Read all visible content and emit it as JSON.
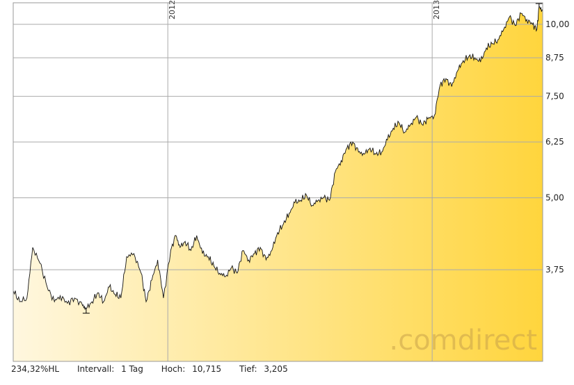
{
  "chart_data": {
    "type": "area",
    "title": "",
    "xlabel": "",
    "ylabel": "",
    "scale": "log",
    "ylim": [
      2.6,
      10.9
    ],
    "yticks": [
      {
        "value": 3.75,
        "label": "3,75"
      },
      {
        "value": 5.0,
        "label": "5,00"
      },
      {
        "value": 6.25,
        "label": "6,25"
      },
      {
        "value": 7.5,
        "label": "7,50"
      },
      {
        "value": 8.75,
        "label": "8,75"
      },
      {
        "value": 10.0,
        "label": "10,00"
      }
    ],
    "xlim": [
      "2011-06-01",
      "2013-06-03"
    ],
    "xticks": [
      {
        "x": "2012-01-01",
        "label": "2012"
      },
      {
        "x": "2013-01-01",
        "label": "2013"
      }
    ],
    "grid": true,
    "fill": "gradient light-to-dark yellow",
    "colors": {
      "fill_light": "#fff7df",
      "fill_dark": "#ffd53d",
      "line": "#111111",
      "grid": "#aaaaaa"
    },
    "watermark": ".comdirect",
    "markers": [
      {
        "label": "low",
        "x": "2011-09-10",
        "y": 3.205
      },
      {
        "label": "high",
        "x": "2013-05-29",
        "y": 10.715
      }
    ],
    "series": [
      {
        "x": [
          "2011-06-01",
          "2011-06-10",
          "2011-06-20",
          "2011-06-28",
          "2011-07-08",
          "2011-07-18",
          "2011-07-28",
          "2011-08-05",
          "2011-08-15",
          "2011-08-25",
          "2011-09-05",
          "2011-09-10",
          "2011-09-18",
          "2011-09-26",
          "2011-10-04",
          "2011-10-12",
          "2011-10-20",
          "2011-10-28",
          "2011-11-05",
          "2011-11-15",
          "2011-11-25",
          "2011-12-02",
          "2011-12-10",
          "2011-12-18",
          "2011-12-26",
          "2012-01-05",
          "2012-01-12",
          "2012-01-18",
          "2012-01-25",
          "2012-02-02",
          "2012-02-10",
          "2012-02-18",
          "2012-02-26",
          "2012-03-05",
          "2012-03-13",
          "2012-03-21",
          "2012-03-29",
          "2012-04-06",
          "2012-04-14",
          "2012-04-22",
          "2012-04-30",
          "2012-05-08",
          "2012-05-16",
          "2012-05-24",
          "2012-06-01",
          "2012-06-09",
          "2012-06-17",
          "2012-06-25",
          "2012-07-03",
          "2012-07-11",
          "2012-07-19",
          "2012-07-27",
          "2012-08-04",
          "2012-08-12",
          "2012-08-20",
          "2012-08-28",
          "2012-09-05",
          "2012-09-13",
          "2012-09-21",
          "2012-09-29",
          "2012-10-07",
          "2012-10-15",
          "2012-10-23",
          "2012-10-31",
          "2012-11-08",
          "2012-11-16",
          "2012-11-24",
          "2012-12-02",
          "2012-12-10",
          "2012-12-18",
          "2012-12-26",
          "2013-01-04",
          "2013-01-12",
          "2013-01-20",
          "2013-01-28",
          "2013-02-05",
          "2013-02-13",
          "2013-02-21",
          "2013-03-01",
          "2013-03-09",
          "2013-03-17",
          "2013-03-25",
          "2013-04-02",
          "2013-04-10",
          "2013-04-18",
          "2013-04-26",
          "2013-05-04",
          "2013-05-12",
          "2013-05-20",
          "2013-05-26",
          "2013-05-29",
          "2013-06-03"
        ],
        "values": [
          3.45,
          3.3,
          3.35,
          4.1,
          3.85,
          3.5,
          3.3,
          3.38,
          3.28,
          3.35,
          3.25,
          3.205,
          3.3,
          3.42,
          3.3,
          3.5,
          3.4,
          3.35,
          3.95,
          4.0,
          3.7,
          3.3,
          3.6,
          3.9,
          3.35,
          4.05,
          4.3,
          4.1,
          4.2,
          4.05,
          4.3,
          4.0,
          3.95,
          3.8,
          3.7,
          3.65,
          3.78,
          3.7,
          4.05,
          3.9,
          4.0,
          4.1,
          3.9,
          4.05,
          4.35,
          4.5,
          4.7,
          4.9,
          4.95,
          5.05,
          4.85,
          4.95,
          5.0,
          4.95,
          5.55,
          5.8,
          6.1,
          6.25,
          6.0,
          5.95,
          6.1,
          5.95,
          6.0,
          6.3,
          6.6,
          6.75,
          6.5,
          6.7,
          6.9,
          6.7,
          6.85,
          6.95,
          7.85,
          8.05,
          7.8,
          8.3,
          8.65,
          8.8,
          8.75,
          8.6,
          9.1,
          9.25,
          9.4,
          9.8,
          10.3,
          9.95,
          10.45,
          10.2,
          10.0,
          9.8,
          10.715,
          10.55
        ]
      }
    ]
  },
  "footer": {
    "hl": "234,32%HL",
    "interval_label": "Intervall:",
    "interval_value": "1 Tag",
    "high_label": "Hoch:",
    "high_value": "10,715",
    "low_label": "Tief:",
    "low_value": "3,205"
  }
}
